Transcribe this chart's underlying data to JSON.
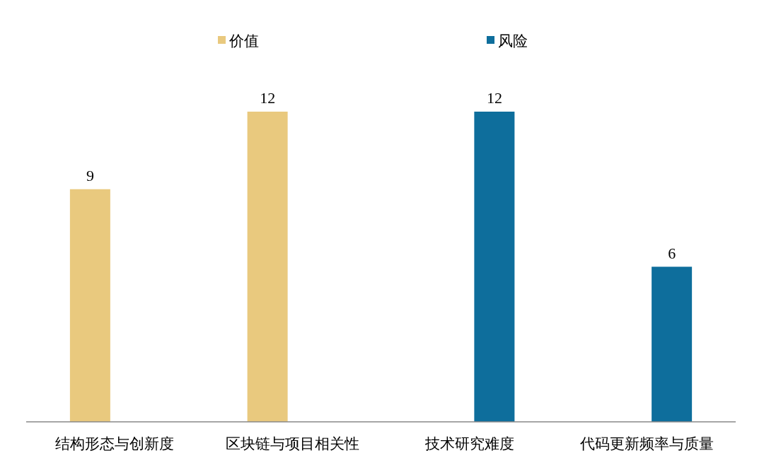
{
  "chart_data": {
    "type": "bar",
    "categories": [
      "结构形态与创新度",
      "区块链与项目相关性",
      "技术研究难度",
      "代码更新频率与质量"
    ],
    "series": [
      {
        "name": "价值",
        "color": "#e9c97e",
        "values": [
          9,
          12,
          null,
          null
        ]
      },
      {
        "name": "风险",
        "color": "#0e6e9c",
        "values": [
          null,
          null,
          12,
          6
        ]
      }
    ],
    "data_labels": true,
    "legend": "top"
  }
}
